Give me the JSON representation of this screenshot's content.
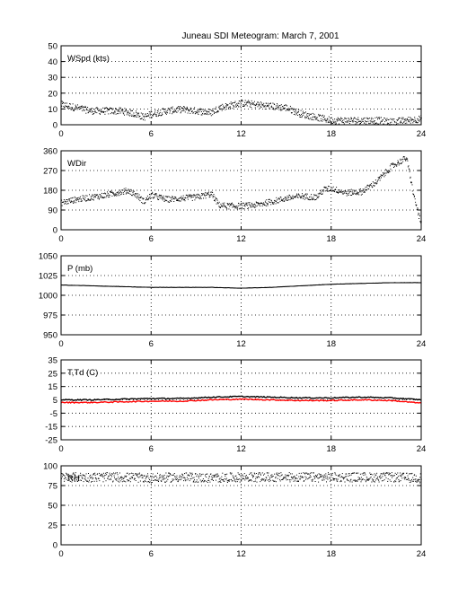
{
  "figure": {
    "title": "Juneau SDI Meteogram:      March  7, 2001"
  },
  "chart_data": [
    {
      "type": "scatter",
      "panel_label": "WSpd (kts)",
      "xlim": [
        0,
        24
      ],
      "ylim": [
        0,
        50
      ],
      "x_ticks": [
        0,
        6,
        12,
        18,
        24
      ],
      "y_ticks": [
        0,
        10,
        20,
        30,
        40,
        50
      ],
      "grid": true,
      "color": "#000000",
      "series": [
        {
          "values_x": [
            0,
            1,
            2,
            3,
            4,
            5,
            5.5,
            6,
            7,
            8,
            9,
            10,
            10.5,
            11,
            12,
            13,
            14,
            15,
            16,
            17,
            18,
            19,
            20,
            21,
            22,
            23,
            24
          ],
          "values_y": [
            13,
            11,
            9,
            9,
            9,
            7,
            5,
            7,
            9,
            10,
            9,
            8,
            11,
            12,
            14,
            13,
            12,
            11,
            7,
            5,
            3,
            3,
            3,
            3,
            2,
            3,
            4
          ]
        }
      ]
    },
    {
      "type": "scatter",
      "panel_label": "WDir",
      "xlim": [
        0,
        24
      ],
      "ylim": [
        0,
        360
      ],
      "x_ticks": [
        0,
        6,
        12,
        18,
        24
      ],
      "y_ticks": [
        0,
        90,
        180,
        270,
        360
      ],
      "grid": true,
      "color": "#000000",
      "series": [
        {
          "values_x": [
            0,
            1,
            2,
            3,
            4,
            4.5,
            5,
            5.5,
            6,
            7,
            8,
            9,
            10,
            10.5,
            11,
            12,
            13,
            14,
            15,
            16,
            17,
            17.5,
            18,
            19,
            20,
            21,
            22,
            23,
            23.5,
            24
          ],
          "values_y": [
            125,
            140,
            150,
            160,
            175,
            180,
            160,
            130,
            160,
            140,
            145,
            150,
            165,
            115,
            110,
            110,
            115,
            130,
            145,
            155,
            150,
            185,
            190,
            170,
            175,
            220,
            290,
            330,
            150,
            20
          ]
        }
      ]
    },
    {
      "type": "line",
      "panel_label": "P (mb)",
      "xlim": [
        0,
        24
      ],
      "ylim": [
        950,
        1050
      ],
      "x_ticks": [
        0,
        6,
        12,
        18,
        24
      ],
      "y_ticks": [
        950,
        975,
        1000,
        1025,
        1050
      ],
      "grid": true,
      "color": "#000000",
      "series": [
        {
          "values_x": [
            0,
            2,
            4,
            6,
            8,
            10,
            12,
            14,
            16,
            18,
            20,
            22,
            24
          ],
          "values_y": [
            1013,
            1012,
            1011,
            1010,
            1010,
            1010,
            1009,
            1010,
            1012,
            1014,
            1015,
            1016,
            1016
          ]
        }
      ]
    },
    {
      "type": "line",
      "panel_label": "T,Td (C)",
      "xlim": [
        0,
        24
      ],
      "ylim": [
        -25,
        35
      ],
      "x_ticks": [
        0,
        6,
        12,
        18,
        24
      ],
      "y_ticks": [
        -25,
        -15,
        -5,
        5,
        15,
        25,
        35
      ],
      "grid": true,
      "series": [
        {
          "color": "#000000",
          "values_x": [
            0,
            2,
            4,
            6,
            8,
            10,
            12,
            14,
            16,
            18,
            20,
            22,
            24
          ],
          "values_y": [
            5,
            5,
            5.5,
            6,
            6,
            7,
            7.5,
            7,
            6.5,
            6.5,
            7,
            6.5,
            5
          ]
        },
        {
          "color": "#ff0000",
          "values_x": [
            0,
            2,
            4,
            6,
            8,
            10,
            12,
            14,
            16,
            18,
            20,
            22,
            24
          ],
          "values_y": [
            3,
            3,
            3.5,
            4,
            4,
            5,
            5.5,
            5,
            4.5,
            4.5,
            5,
            4.5,
            2.5
          ]
        }
      ]
    },
    {
      "type": "scatter",
      "panel_label": "RH",
      "xlim": [
        0,
        24
      ],
      "ylim": [
        0,
        100
      ],
      "x_ticks": [
        0,
        6,
        12,
        18,
        24
      ],
      "y_ticks": [
        0,
        25,
        50,
        75,
        100
      ],
      "grid": true,
      "color": "#000000",
      "series": [
        {
          "values_x": [
            0,
            2,
            4,
            6,
            8,
            10,
            12,
            14,
            16,
            18,
            20,
            22,
            24
          ],
          "values_y": [
            86,
            86,
            86,
            85,
            86,
            85,
            86,
            86,
            86,
            86,
            86,
            86,
            85
          ]
        }
      ]
    }
  ]
}
